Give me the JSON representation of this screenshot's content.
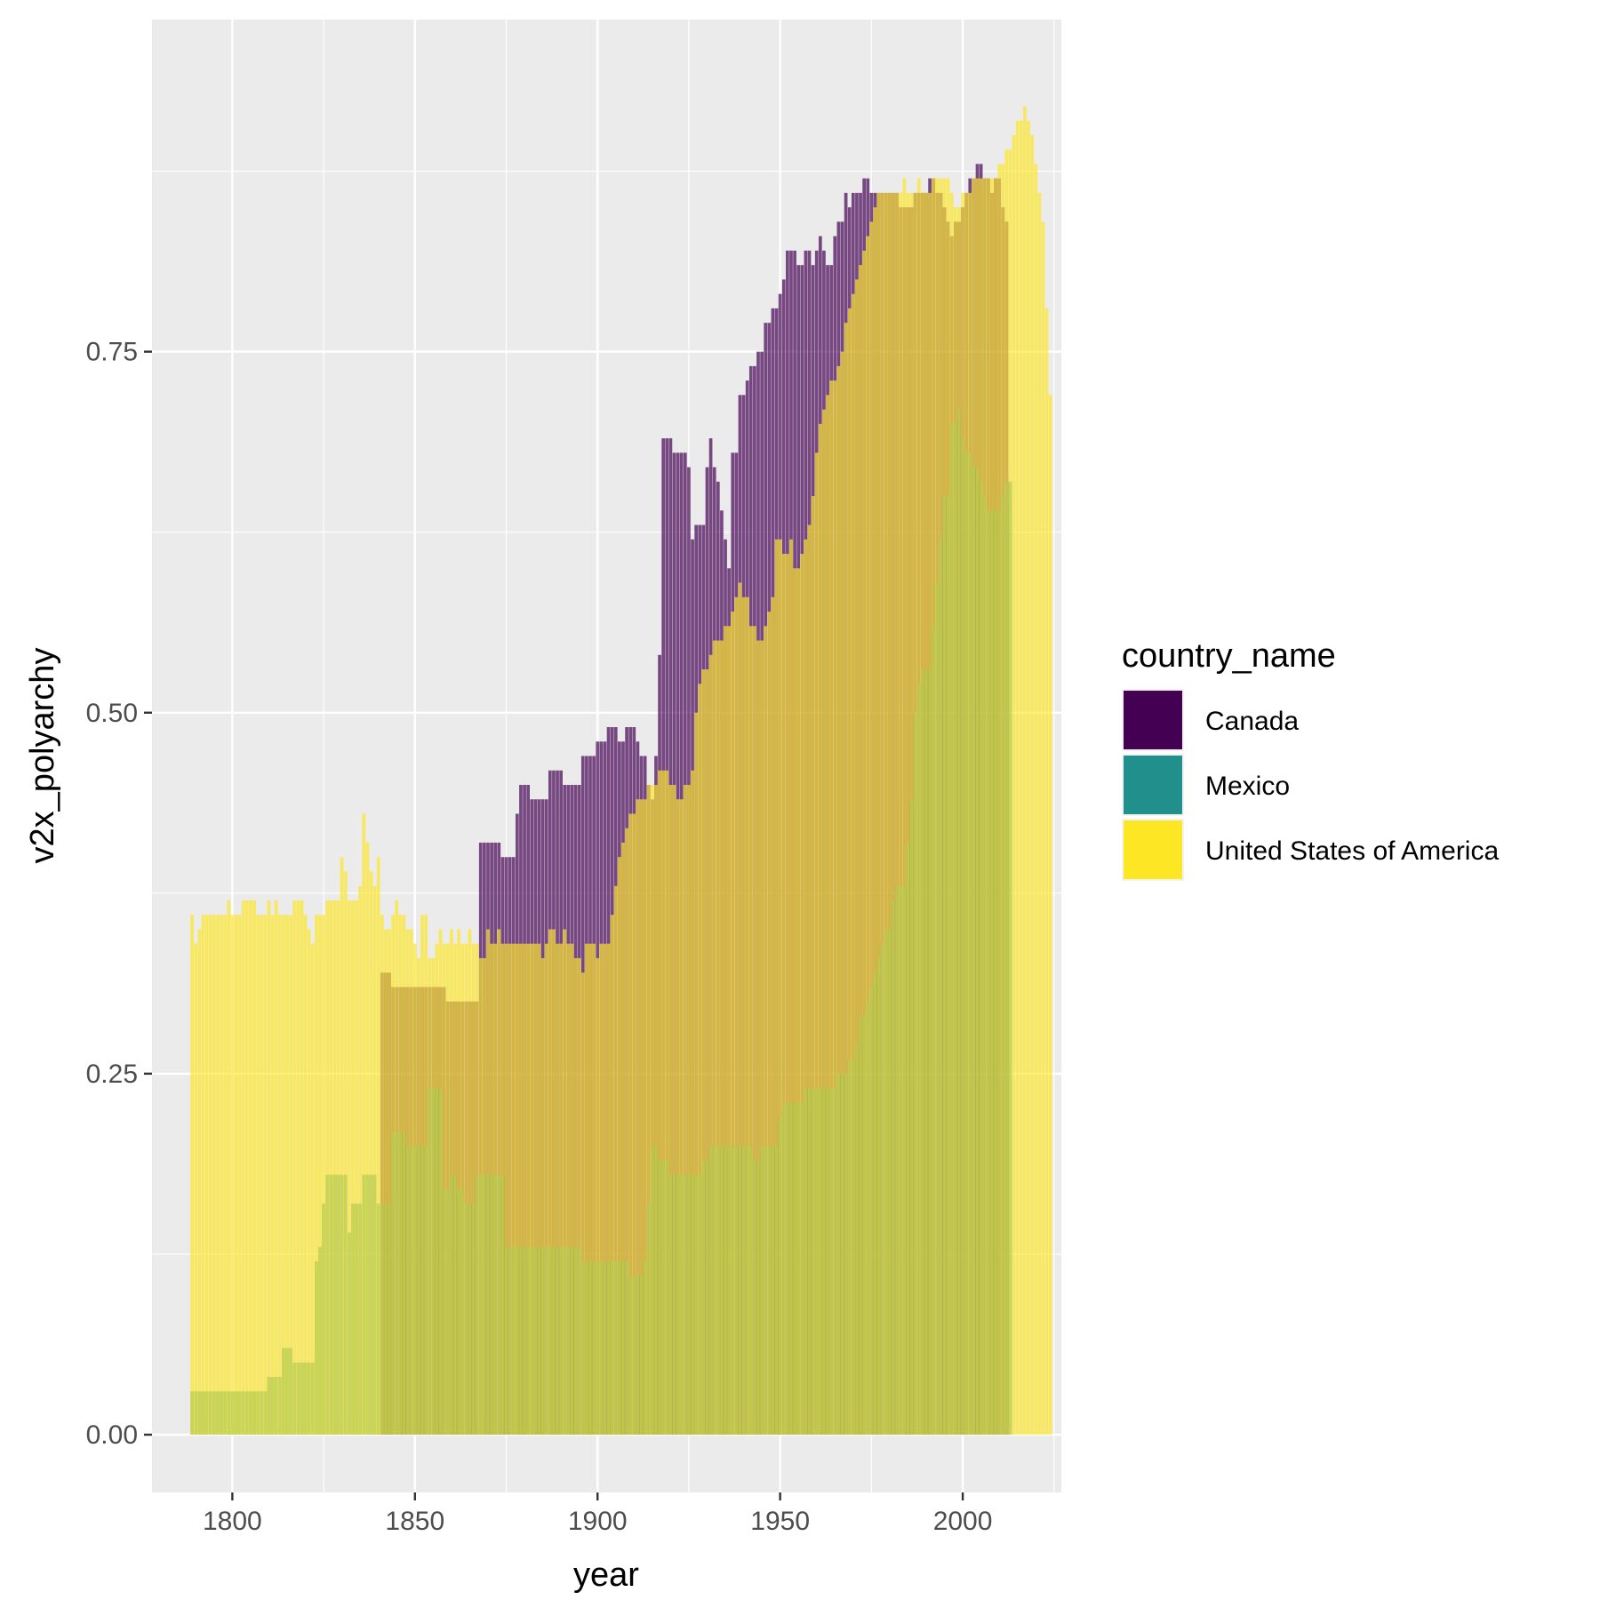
{
  "chart_data": {
    "type": "bar",
    "title": "",
    "xlabel": "year",
    "ylabel": "v2x_polyarchy",
    "xlim": [
      1778,
      2027
    ],
    "ylim": [
      -0.04,
      0.98
    ],
    "x_ticks": [
      1800,
      1850,
      1900,
      1950,
      2000
    ],
    "x_tick_labels": [
      "1800",
      "1850",
      "1900",
      "1950",
      "2000"
    ],
    "y_ticks": [
      0,
      0.25,
      0.5,
      0.75
    ],
    "y_tick_labels": [
      "0.00",
      "0.25",
      "0.50",
      "0.75"
    ],
    "grid": true,
    "legend": {
      "title": "country_name",
      "position": "right"
    },
    "bar_alpha": 0.7,
    "series": [
      {
        "name": "Canada",
        "color": "#440154",
        "start": 1841,
        "values": [
          0.32,
          0.32,
          0.32,
          0.31,
          0.31,
          0.31,
          0.31,
          0.31,
          0.31,
          0.31,
          0.31,
          0.31,
          0.31,
          0.31,
          0.31,
          0.31,
          0.31,
          0.31,
          0.3,
          0.3,
          0.3,
          0.3,
          0.3,
          0.3,
          0.3,
          0.3,
          0.3,
          0.41,
          0.41,
          0.41,
          0.41,
          0.41,
          0.41,
          0.4,
          0.4,
          0.4,
          0.4,
          0.43,
          0.45,
          0.45,
          0.45,
          0.44,
          0.44,
          0.44,
          0.44,
          0.44,
          0.46,
          0.46,
          0.46,
          0.46,
          0.45,
          0.45,
          0.45,
          0.45,
          0.45,
          0.47,
          0.47,
          0.47,
          0.47,
          0.48,
          0.48,
          0.48,
          0.49,
          0.49,
          0.49,
          0.48,
          0.48,
          0.49,
          0.49,
          0.49,
          0.48,
          0.47,
          0.47,
          0.45,
          0.44,
          0.47,
          0.54,
          0.69,
          0.69,
          0.69,
          0.68,
          0.68,
          0.68,
          0.68,
          0.67,
          0.62,
          0.63,
          0.63,
          0.63,
          0.67,
          0.69,
          0.67,
          0.66,
          0.64,
          0.62,
          0.6,
          0.68,
          0.68,
          0.72,
          0.72,
          0.73,
          0.74,
          0.74,
          0.75,
          0.75,
          0.77,
          0.77,
          0.78,
          0.78,
          0.79,
          0.8,
          0.82,
          0.82,
          0.82,
          0.81,
          0.81,
          0.82,
          0.82,
          0.81,
          0.82,
          0.83,
          0.82,
          0.81,
          0.81,
          0.83,
          0.84,
          0.84,
          0.86,
          0.85,
          0.86,
          0.86,
          0.86,
          0.87,
          0.87,
          0.86,
          0.86,
          0.86,
          0.86,
          0.86,
          0.86,
          0.86,
          0.86,
          0.85,
          0.85,
          0.85,
          0.85,
          0.86,
          0.86,
          0.86,
          0.86,
          0.87,
          0.87,
          0.86,
          0.86,
          0.85,
          0.84,
          0.83,
          0.84,
          0.84,
          0.85,
          0.86,
          0.87,
          0.87,
          0.88,
          0.88,
          0.87,
          0.87,
          0.86,
          0.87,
          0.87,
          0.85,
          0.84
        ]
      },
      {
        "name": "Mexico",
        "color": "#21908C",
        "start": 1789,
        "values": [
          0.03,
          0.03,
          0.03,
          0.03,
          0.03,
          0.03,
          0.03,
          0.03,
          0.03,
          0.03,
          0.03,
          0.03,
          0.03,
          0.03,
          0.03,
          0.03,
          0.03,
          0.03,
          0.03,
          0.03,
          0.03,
          0.04,
          0.04,
          0.04,
          0.04,
          0.06,
          0.06,
          0.06,
          0.05,
          0.05,
          0.05,
          0.05,
          0.05,
          0.05,
          0.12,
          0.13,
          0.16,
          0.18,
          0.18,
          0.18,
          0.18,
          0.18,
          0.18,
          0.14,
          0.16,
          0.16,
          0.16,
          0.18,
          0.18,
          0.18,
          0.18,
          0.16,
          0.16,
          0.16,
          0.16,
          0.21,
          0.21,
          0.21,
          0.21,
          0.2,
          0.2,
          0.2,
          0.2,
          0.2,
          0.2,
          0.24,
          0.24,
          0.24,
          0.24,
          0.17,
          0.17,
          0.18,
          0.18,
          0.17,
          0.17,
          0.16,
          0.16,
          0.16,
          0.18,
          0.18,
          0.18,
          0.18,
          0.18,
          0.18,
          0.18,
          0.18,
          0.13,
          0.13,
          0.13,
          0.13,
          0.13,
          0.13,
          0.13,
          0.13,
          0.13,
          0.13,
          0.13,
          0.13,
          0.13,
          0.13,
          0.13,
          0.13,
          0.13,
          0.13,
          0.13,
          0.13,
          0.13,
          0.12,
          0.12,
          0.12,
          0.12,
          0.12,
          0.12,
          0.12,
          0.12,
          0.12,
          0.12,
          0.12,
          0.12,
          0.12,
          0.11,
          0.11,
          0.11,
          0.11,
          0.12,
          0.16,
          0.2,
          0.2,
          0.19,
          0.19,
          0.19,
          0.18,
          0.18,
          0.18,
          0.18,
          0.18,
          0.18,
          0.18,
          0.18,
          0.18,
          0.19,
          0.19,
          0.2,
          0.2,
          0.2,
          0.2,
          0.2,
          0.2,
          0.2,
          0.2,
          0.2,
          0.2,
          0.2,
          0.2,
          0.19,
          0.19,
          0.2,
          0.2,
          0.2,
          0.2,
          0.2,
          0.22,
          0.23,
          0.23,
          0.23,
          0.23,
          0.23,
          0.23,
          0.24,
          0.24,
          0.24,
          0.24,
          0.24,
          0.24,
          0.24,
          0.24,
          0.24,
          0.25,
          0.25,
          0.25,
          0.26,
          0.26,
          0.27,
          0.29,
          0.29,
          0.3,
          0.31,
          0.32,
          0.33,
          0.34,
          0.35,
          0.35,
          0.37,
          0.38,
          0.38,
          0.38,
          0.41,
          0.44,
          0.5,
          0.52,
          0.53,
          0.53,
          0.53,
          0.56,
          0.59,
          0.62,
          0.65,
          0.65,
          0.7,
          0.7,
          0.71,
          0.69,
          0.68,
          0.68,
          0.67,
          0.67,
          0.66,
          0.65,
          0.64,
          0.64,
          0.64,
          0.64,
          0.65,
          0.66,
          0.66
        ]
      },
      {
        "name": "United States of America",
        "color": "#FDE725",
        "start": 1789,
        "values": [
          0.36,
          0.34,
          0.35,
          0.36,
          0.36,
          0.36,
          0.36,
          0.36,
          0.36,
          0.36,
          0.37,
          0.36,
          0.36,
          0.36,
          0.37,
          0.37,
          0.37,
          0.37,
          0.36,
          0.36,
          0.36,
          0.37,
          0.36,
          0.37,
          0.36,
          0.36,
          0.36,
          0.36,
          0.37,
          0.37,
          0.37,
          0.36,
          0.35,
          0.34,
          0.36,
          0.36,
          0.36,
          0.37,
          0.37,
          0.37,
          0.37,
          0.4,
          0.39,
          0.37,
          0.37,
          0.37,
          0.38,
          0.43,
          0.41,
          0.39,
          0.38,
          0.4,
          0.36,
          0.35,
          0.35,
          0.36,
          0.37,
          0.36,
          0.36,
          0.35,
          0.35,
          0.34,
          0.33,
          0.36,
          0.36,
          0.33,
          0.33,
          0.34,
          0.35,
          0.34,
          0.34,
          0.35,
          0.34,
          0.35,
          0.34,
          0.34,
          0.35,
          0.34,
          0.34,
          0.33,
          0.33,
          0.35,
          0.34,
          0.34,
          0.35,
          0.34,
          0.34,
          0.34,
          0.34,
          0.34,
          0.34,
          0.34,
          0.34,
          0.34,
          0.34,
          0.34,
          0.33,
          0.34,
          0.35,
          0.35,
          0.34,
          0.34,
          0.35,
          0.34,
          0.34,
          0.33,
          0.33,
          0.32,
          0.34,
          0.34,
          0.34,
          0.33,
          0.34,
          0.34,
          0.34,
          0.36,
          0.38,
          0.4,
          0.41,
          0.42,
          0.43,
          0.43,
          0.44,
          0.44,
          0.44,
          0.45,
          0.45,
          0.45,
          0.46,
          0.46,
          0.46,
          0.45,
          0.45,
          0.44,
          0.44,
          0.45,
          0.45,
          0.46,
          0.5,
          0.52,
          0.53,
          0.53,
          0.54,
          0.55,
          0.55,
          0.55,
          0.56,
          0.56,
          0.57,
          0.58,
          0.59,
          0.58,
          0.58,
          0.56,
          0.56,
          0.55,
          0.55,
          0.56,
          0.57,
          0.58,
          0.62,
          0.62,
          0.61,
          0.61,
          0.62,
          0.6,
          0.6,
          0.61,
          0.62,
          0.63,
          0.65,
          0.68,
          0.7,
          0.71,
          0.72,
          0.73,
          0.73,
          0.74,
          0.75,
          0.77,
          0.78,
          0.79,
          0.8,
          0.81,
          0.82,
          0.83,
          0.84,
          0.85,
          0.86,
          0.86,
          0.86,
          0.86,
          0.86,
          0.86,
          0.86,
          0.87,
          0.86,
          0.86,
          0.86,
          0.87,
          0.86,
          0.86,
          0.86,
          0.87,
          0.87,
          0.87,
          0.87,
          0.87,
          0.86,
          0.85,
          0.85,
          0.86,
          0.86,
          0.86,
          0.87,
          0.87,
          0.87,
          0.87,
          0.87,
          0.87,
          0.87,
          0.88,
          0.88,
          0.89,
          0.89,
          0.9,
          0.91,
          0.91,
          0.92,
          0.91,
          0.9,
          0.88,
          0.86,
          0.84,
          0.78,
          0.72
        ]
      }
    ]
  }
}
